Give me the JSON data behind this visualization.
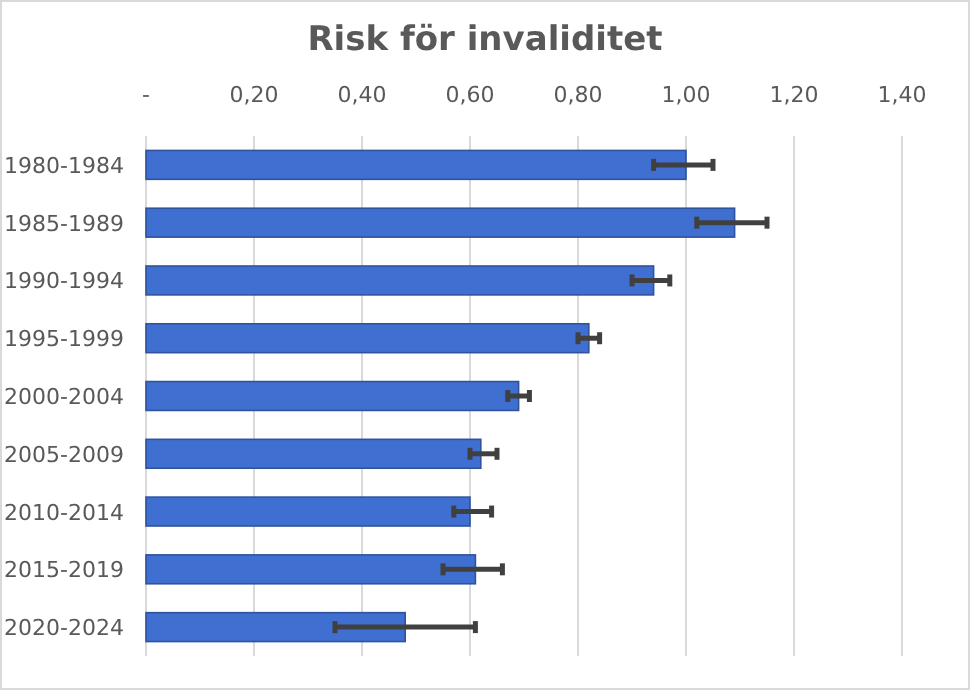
{
  "chart_data": {
    "type": "bar",
    "orientation": "horizontal",
    "title": "Risk för invaliditet",
    "categories": [
      "1980-1984",
      "1985-1989",
      "1990-1994",
      "1995-1999",
      "2000-2004",
      "2005-2009",
      "2010-2014",
      "2015-2019",
      "2020-2024"
    ],
    "values": [
      1.0,
      1.09,
      0.94,
      0.82,
      0.69,
      0.62,
      0.6,
      0.61,
      0.48
    ],
    "errors": [
      [
        0.94,
        1.05
      ],
      [
        1.02,
        1.15
      ],
      [
        0.9,
        0.97
      ],
      [
        0.8,
        0.84
      ],
      [
        0.67,
        0.71
      ],
      [
        0.6,
        0.65
      ],
      [
        0.57,
        0.64
      ],
      [
        0.55,
        0.66
      ],
      [
        0.35,
        0.61
      ]
    ],
    "color": "#3f6fd1",
    "xlim": [
      0,
      1.4
    ],
    "xticks": [
      {
        "value": 0,
        "label": "-"
      },
      {
        "value": 0.2,
        "label": "0,20"
      },
      {
        "value": 0.4,
        "label": "0,40"
      },
      {
        "value": 0.6,
        "label": "0,60"
      },
      {
        "value": 0.8,
        "label": "0,80"
      },
      {
        "value": 1.0,
        "label": "1,00"
      },
      {
        "value": 1.2,
        "label": "1,20"
      },
      {
        "value": 1.4,
        "label": "1,40"
      }
    ],
    "grid": "x"
  }
}
